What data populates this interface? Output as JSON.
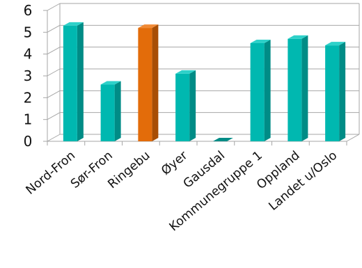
{
  "chart_data": {
    "type": "bar",
    "categories": [
      "Nord-Fron",
      "Sør-Fron",
      "Ringebu",
      "Øyer",
      "Gausdal",
      "Kommunegruppe 1",
      "Oppland",
      "Landet u/Oslo"
    ],
    "values": [
      5.3,
      2.6,
      5.2,
      3.1,
      0.0,
      4.5,
      4.7,
      4.4
    ],
    "highlight_index": 2,
    "ylim": [
      0,
      6
    ],
    "yticks": [
      0,
      1,
      2,
      3,
      4,
      5,
      6
    ],
    "grid": true,
    "legend": "none",
    "title": "",
    "xlabel": "",
    "ylabel": "",
    "colors": {
      "bar": "#00B8B0",
      "bar_side": "#008C86",
      "bar_top": "#2ED1C9",
      "highlight": "#E36C0A",
      "highlight_side": "#A84E05",
      "highlight_top": "#F08A36",
      "grid": "#A6A6A6"
    }
  }
}
